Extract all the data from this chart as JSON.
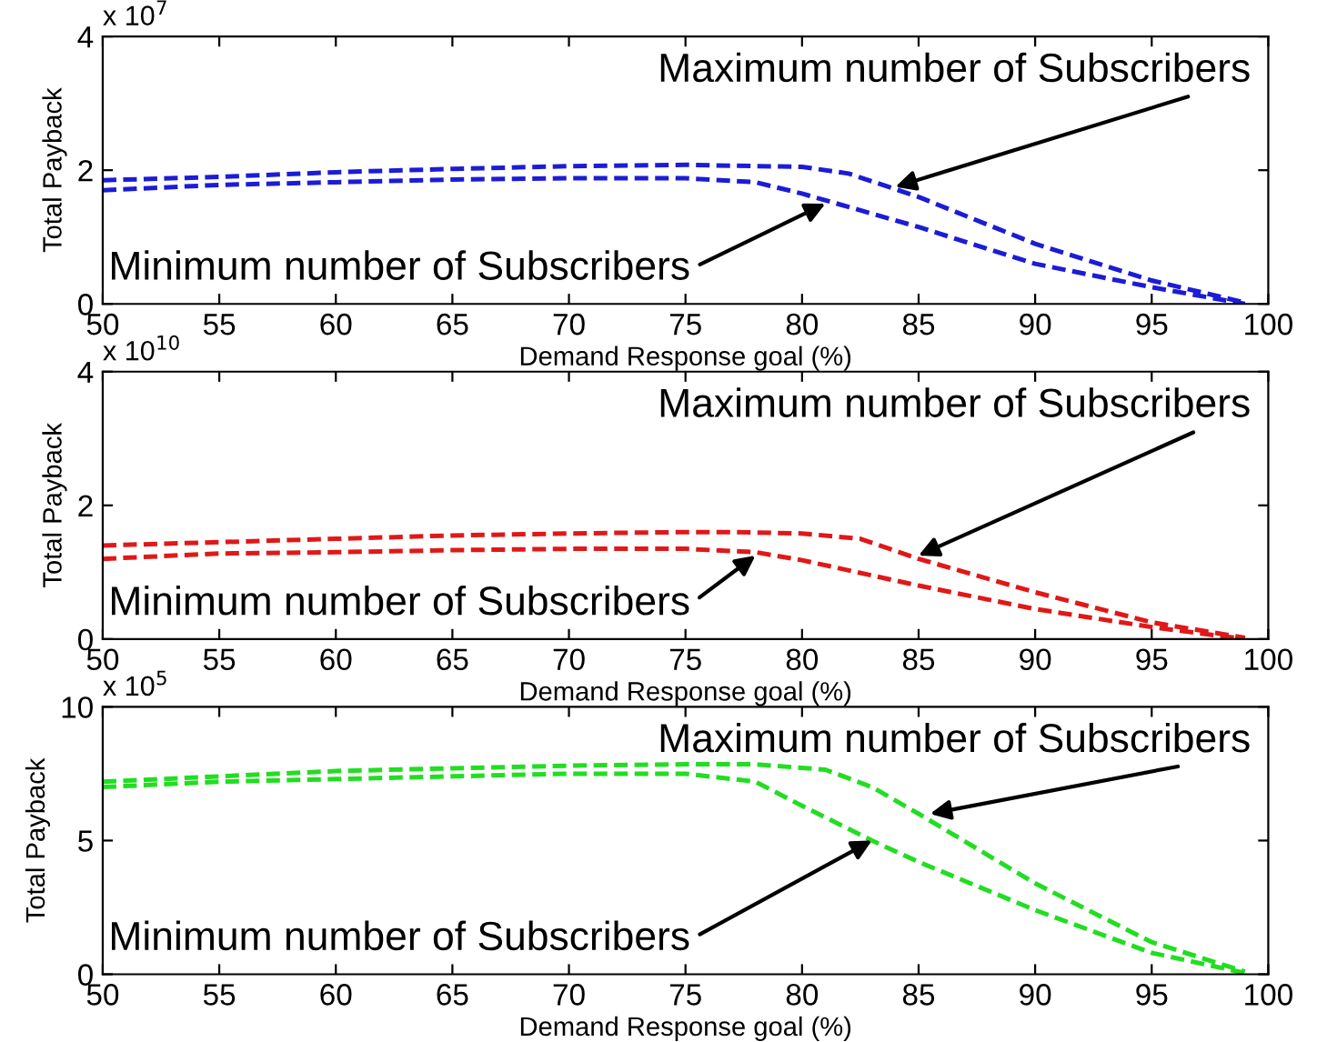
{
  "chart_data": [
    {
      "type": "line",
      "xlabel": "Demand Response goal (%)",
      "ylabel": "Total Payback",
      "xlim": [
        50,
        100
      ],
      "xticks": [
        50,
        55,
        60,
        65,
        70,
        75,
        80,
        85,
        90,
        95,
        100
      ],
      "ylim": [
        0,
        4
      ],
      "yticks": [
        0,
        2,
        4
      ],
      "line_style": "dashed",
      "grid": false,
      "legend": false,
      "series": [
        {
          "color": "#1c1cd6",
          "x": [
            50,
            55,
            60,
            65,
            70,
            75,
            80,
            82,
            85,
            90,
            95,
            99
          ],
          "values": [
            1.85,
            1.9,
            1.97,
            2.02,
            2.06,
            2.08,
            2.05,
            1.95,
            1.6,
            0.9,
            0.35,
            0.02
          ]
        },
        {
          "color": "#1c1cd6",
          "x": [
            50,
            55,
            60,
            65,
            70,
            75,
            78,
            80,
            85,
            90,
            95,
            99
          ],
          "values": [
            1.7,
            1.78,
            1.82,
            1.86,
            1.88,
            1.88,
            1.82,
            1.65,
            1.15,
            0.6,
            0.25,
            0.0
          ]
        }
      ],
      "annotations": [
        "x 10$^{7}$",
        {
          "text": "Maximum number of Subscribers",
          "x": 84,
          "y": 1.75
        },
        {
          "text": "Minimum number of Subscribers",
          "x": 81,
          "y": 1.5
        }
      ]
    },
    {
      "type": "line",
      "xlabel": "Demand Response goal (%)",
      "ylabel": "Total Payback",
      "xlim": [
        50,
        100
      ],
      "xticks": [
        50,
        55,
        60,
        65,
        70,
        75,
        80,
        85,
        90,
        95,
        100
      ],
      "ylim": [
        0,
        4
      ],
      "yticks": [
        0,
        2,
        4
      ],
      "line_style": "dashed",
      "grid": false,
      "legend": false,
      "series": [
        {
          "color": "#e01818",
          "x": [
            50,
            55,
            60,
            65,
            70,
            75,
            77,
            80,
            82.5,
            85,
            90,
            95,
            99
          ],
          "values": [
            1.4,
            1.45,
            1.5,
            1.55,
            1.58,
            1.6,
            1.6,
            1.58,
            1.5,
            1.2,
            0.7,
            0.25,
            0.02
          ]
        },
        {
          "color": "#e01818",
          "x": [
            50,
            55,
            60,
            65,
            70,
            75,
            78,
            80,
            85,
            90,
            95,
            99
          ],
          "values": [
            1.2,
            1.28,
            1.3,
            1.33,
            1.35,
            1.35,
            1.3,
            1.18,
            0.8,
            0.45,
            0.18,
            0.0
          ]
        }
      ],
      "annotations": [
        "x 10$^{10}$",
        {
          "text": "Maximum number of Subscribers",
          "x": 85,
          "y": 1.25
        },
        {
          "text": "Minimum number of Subscribers",
          "x": 78,
          "y": 1.25
        }
      ]
    },
    {
      "type": "line",
      "xlabel": "Demand Response goal (%)",
      "ylabel": "Total Payback",
      "xlim": [
        50,
        100
      ],
      "xticks": [
        50,
        55,
        60,
        65,
        70,
        75,
        80,
        85,
        90,
        95,
        100
      ],
      "ylim": [
        0,
        10
      ],
      "yticks": [
        0,
        5,
        10
      ],
      "line_style": "dashed",
      "grid": false,
      "legend": false,
      "series": [
        {
          "color": "#22dd22",
          "x": [
            50,
            55,
            60,
            65,
            70,
            75,
            78,
            81,
            83,
            85,
            90,
            95,
            99
          ],
          "values": [
            7.2,
            7.4,
            7.6,
            7.7,
            7.8,
            7.85,
            7.85,
            7.65,
            7.0,
            6.0,
            3.4,
            1.2,
            0.1
          ]
        },
        {
          "color": "#22dd22",
          "x": [
            50,
            55,
            60,
            65,
            70,
            75,
            78,
            80,
            83,
            85,
            90,
            95,
            99
          ],
          "values": [
            7.0,
            7.2,
            7.3,
            7.4,
            7.5,
            7.5,
            7.2,
            6.3,
            5.0,
            4.2,
            2.4,
            0.8,
            0.05
          ]
        }
      ],
      "annotations": [
        "x 10$^{5}$",
        {
          "text": "Maximum number of Subscribers",
          "x": 85.5,
          "y": 6.0
        },
        {
          "text": "Minimum number of Subscribers",
          "x": 83,
          "y": 5.0
        }
      ]
    }
  ]
}
